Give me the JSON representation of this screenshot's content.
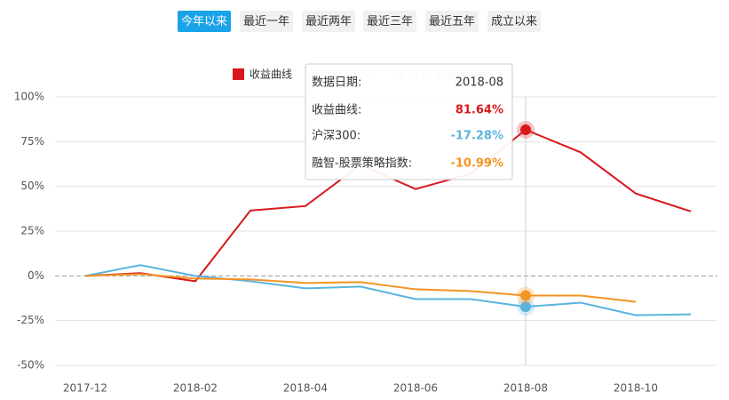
{
  "tabs": {
    "items": [
      "今年以来",
      "最近一年",
      "最近两年",
      "最近三年",
      "最近五年",
      "成立以来"
    ],
    "active": 0
  },
  "chart_data": {
    "type": "line",
    "categories": [
      "2017-12",
      null,
      "2018-02",
      null,
      "2018-04",
      null,
      "2018-06",
      null,
      "2018-08",
      null,
      "2018-10",
      null
    ],
    "series": [
      {
        "name": "收益曲线",
        "color": "#d7191c",
        "values": [
          0,
          1.5,
          -3,
          36.5,
          39,
          62,
          48.5,
          57,
          81.64,
          69,
          46,
          36
        ],
        "value_labels": [
          null,
          null,
          null,
          null,
          null,
          null,
          null,
          null,
          "81.64%",
          null,
          null,
          null
        ]
      },
      {
        "name": "沪深300",
        "color": "#5ab4de",
        "values": [
          0,
          6,
          0,
          -3,
          -7,
          -6,
          -13,
          -13,
          -17.28,
          -15,
          -22,
          -21.5
        ],
        "value_labels": [
          null,
          null,
          null,
          null,
          null,
          null,
          null,
          null,
          "-17.28%",
          null,
          null,
          null
        ]
      },
      {
        "name": "融智-股票策略指数",
        "color": "#f39423",
        "values": [
          0,
          1,
          -1.5,
          -2,
          -4,
          -3.5,
          -7.5,
          -8.5,
          -10.99,
          -11,
          -14.5,
          null
        ],
        "value_labels": [
          null,
          null,
          null,
          null,
          null,
          null,
          null,
          null,
          "-10.99%",
          null,
          null,
          null
        ]
      }
    ],
    "ylim": [
      -50,
      100
    ],
    "yticks": [
      {
        "value": -50,
        "label": "-50%"
      },
      {
        "value": -25,
        "label": "-25%"
      },
      {
        "value": 0,
        "label": "0%"
      },
      {
        "value": 25,
        "label": "25%"
      },
      {
        "value": 50,
        "label": "50%"
      },
      {
        "value": 75,
        "label": "75%"
      },
      {
        "value": 100,
        "label": "100%"
      }
    ],
    "grid": true,
    "tooltip": {
      "index": 8,
      "date_label": "数据日期:",
      "labels": [
        "收益曲线:",
        "沪深300:",
        "融智-股票策略指数:"
      ]
    }
  }
}
